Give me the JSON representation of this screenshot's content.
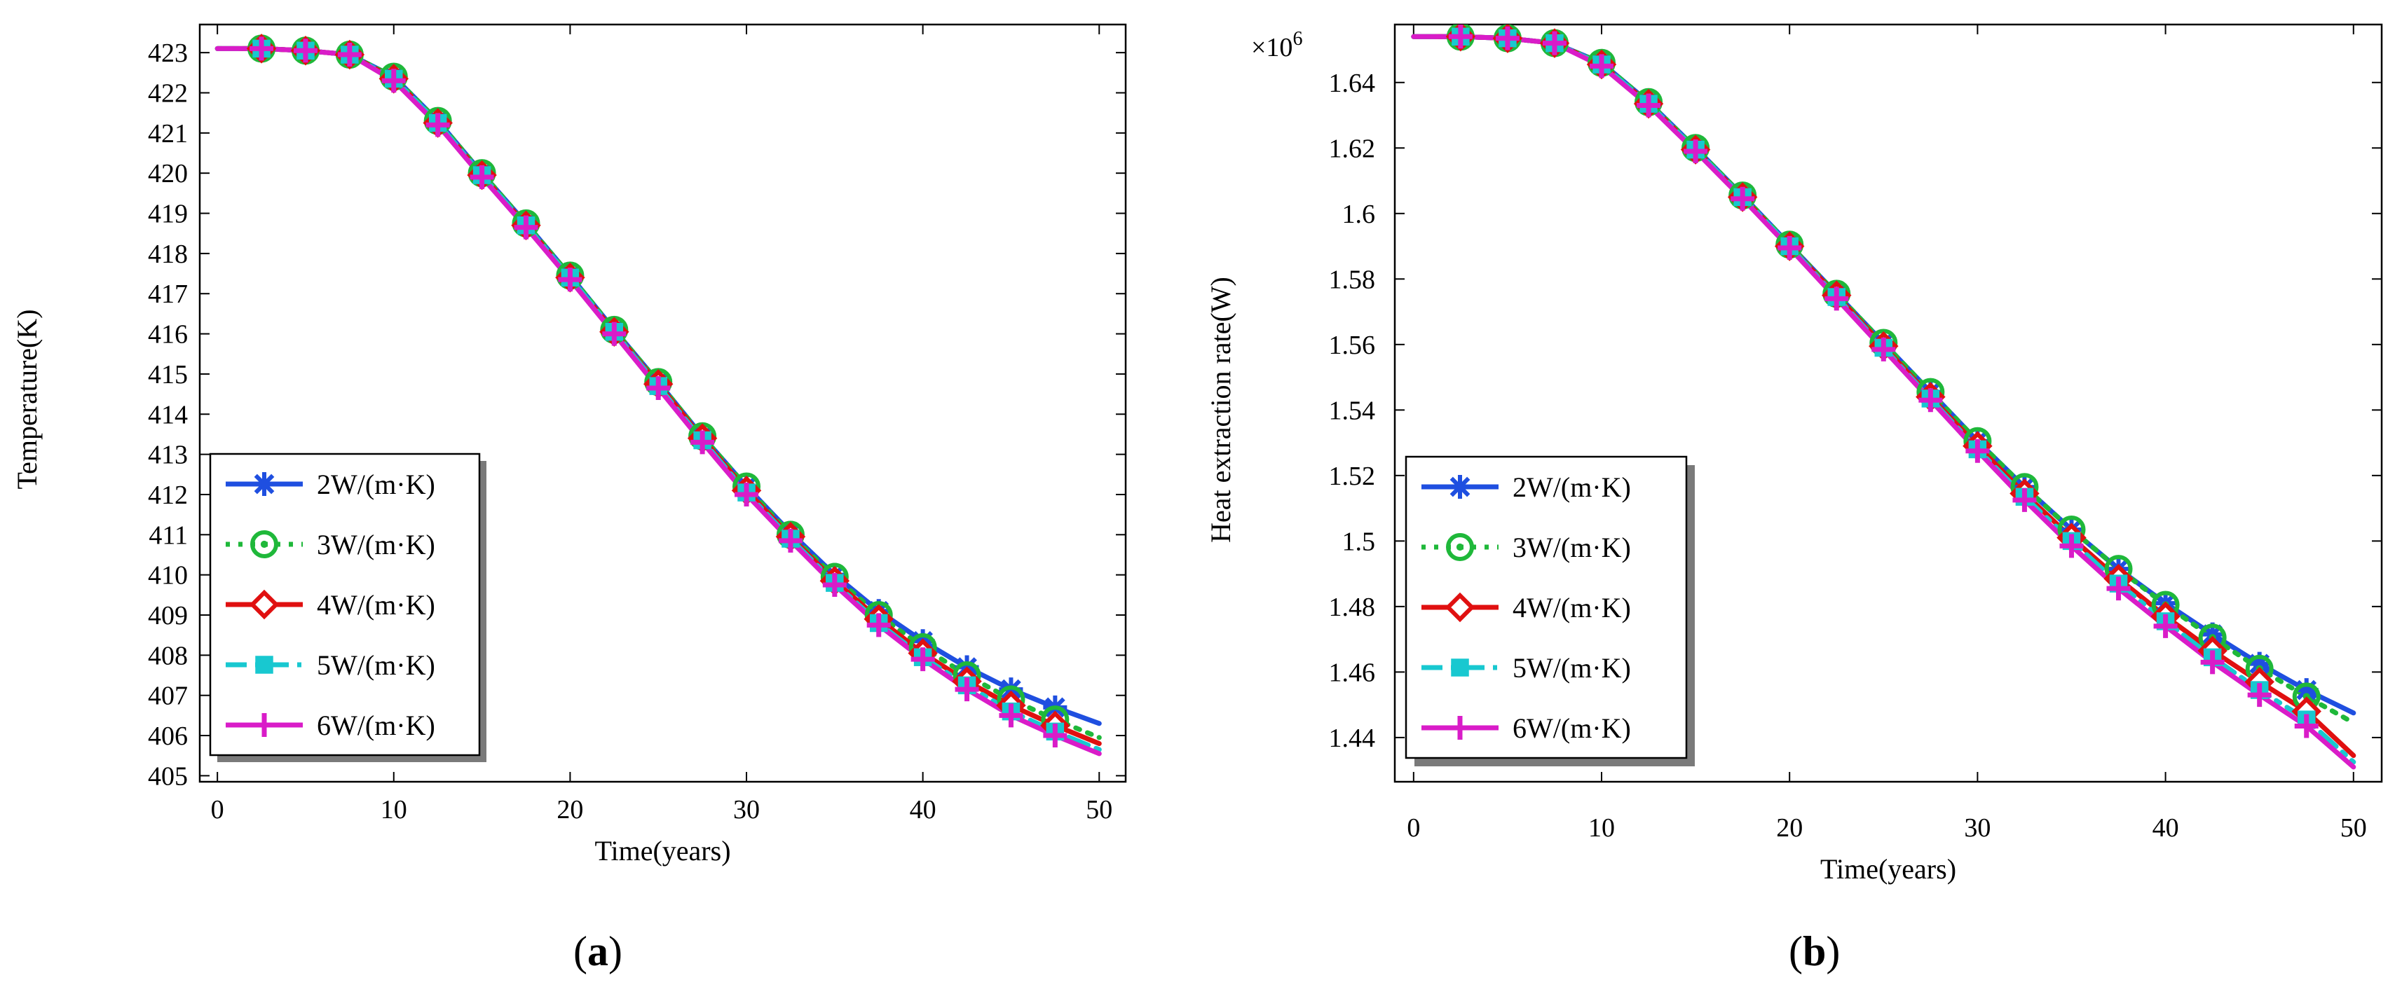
{
  "chart_data": [
    {
      "type": "line",
      "panel_label": {
        "open": "(",
        "letter": "a",
        "close": ")"
      },
      "title": "",
      "xlabel": "Time(years)",
      "ylabel": "Temperature(K)",
      "xlim": [
        -1,
        51.5
      ],
      "ylim": [
        404.85,
        423.7
      ],
      "x_ticks": [
        0,
        10,
        20,
        30,
        40,
        50
      ],
      "y_ticks": [
        405,
        406,
        407,
        408,
        409,
        410,
        411,
        412,
        413,
        414,
        415,
        416,
        417,
        418,
        419,
        420,
        421,
        422,
        423
      ],
      "y_multiplier": "",
      "grid": false,
      "legend_position": "bottom-left",
      "x": [
        0,
        2.5,
        5,
        7.5,
        10,
        12.5,
        15,
        17.5,
        20,
        22.5,
        25,
        27.5,
        30,
        32.5,
        35,
        37.5,
        40,
        42.5,
        45,
        47.5,
        50
      ],
      "series": [
        {
          "name": "2W/(m·K)",
          "color": "#1f4fe0",
          "marker": "asterisk",
          "dash": "solid",
          "values": [
            423.1,
            423.1,
            423.05,
            422.95,
            422.4,
            421.3,
            420.0,
            418.75,
            417.45,
            416.1,
            414.8,
            413.45,
            412.2,
            411.05,
            410.0,
            409.1,
            408.35,
            407.7,
            407.15,
            406.7,
            406.3
          ]
        },
        {
          "name": "3W/(m·K)",
          "color": "#1fb83a",
          "marker": "circle-dot",
          "dash": "dot",
          "values": [
            423.1,
            423.1,
            423.05,
            422.95,
            422.4,
            421.3,
            420.0,
            418.75,
            417.45,
            416.1,
            414.8,
            413.45,
            412.2,
            411.0,
            409.95,
            409.0,
            408.2,
            407.5,
            406.9,
            406.4,
            405.95
          ]
        },
        {
          "name": "4W/(m·K)",
          "color": "#e01010",
          "marker": "diamond",
          "dash": "solid",
          "values": [
            423.1,
            423.1,
            423.05,
            422.95,
            422.35,
            421.25,
            419.95,
            418.7,
            417.4,
            416.05,
            414.75,
            413.4,
            412.1,
            410.95,
            409.85,
            408.9,
            408.05,
            407.35,
            406.75,
            406.25,
            405.8
          ]
        },
        {
          "name": "5W/(m·K)",
          "color": "#18c8d0",
          "marker": "square",
          "dash": "dashdot",
          "values": [
            423.1,
            423.1,
            423.05,
            422.95,
            422.35,
            421.25,
            419.95,
            418.7,
            417.4,
            416.05,
            414.7,
            413.35,
            412.05,
            410.9,
            409.8,
            408.8,
            407.95,
            407.25,
            406.6,
            406.1,
            405.65
          ]
        },
        {
          "name": "6W/(m·K)",
          "color": "#d91cc8",
          "marker": "plus",
          "dash": "solid",
          "values": [
            423.1,
            423.1,
            423.05,
            422.95,
            422.3,
            421.2,
            419.9,
            418.65,
            417.35,
            416.0,
            414.65,
            413.3,
            412.0,
            410.85,
            409.75,
            408.75,
            407.9,
            407.15,
            406.5,
            406.0,
            405.55
          ]
        }
      ]
    },
    {
      "type": "line",
      "panel_label": {
        "open": "(",
        "letter": "b",
        "close": ")"
      },
      "title": "",
      "xlabel": "Time(years)",
      "ylabel": "Heat extraction rate(W)",
      "xlim": [
        -1,
        51.5
      ],
      "ylim": [
        1.4265,
        1.6577
      ],
      "x_ticks": [
        0,
        10,
        20,
        30,
        40,
        50
      ],
      "y_ticks": [
        1.44,
        1.46,
        1.48,
        1.5,
        1.52,
        1.54,
        1.56,
        1.58,
        1.6,
        1.62,
        1.64
      ],
      "y_tick_labels": [
        "1.44",
        "1.46",
        "1.48",
        "1.5",
        "1.52",
        "1.54",
        "1.56",
        "1.58",
        "1.6",
        "1.62",
        "1.64"
      ],
      "y_multiplier": {
        "base": "×10",
        "exponent": "6"
      },
      "grid": false,
      "legend_position": "bottom-left",
      "x": [
        0,
        2.5,
        5,
        7.5,
        10,
        12.5,
        15,
        17.5,
        20,
        22.5,
        25,
        27.5,
        30,
        32.5,
        35,
        37.5,
        40,
        42.5,
        45,
        47.5,
        50
      ],
      "series": [
        {
          "name": "2W/(m·K)",
          "color": "#1f4fe0",
          "marker": "asterisk",
          "dash": "solid",
          "values": [
            1.654,
            1.654,
            1.6535,
            1.652,
            1.646,
            1.634,
            1.62,
            1.6055,
            1.5905,
            1.5755,
            1.5605,
            1.5455,
            1.5305,
            1.5165,
            1.5035,
            1.4915,
            1.481,
            1.4715,
            1.4625,
            1.4545,
            1.4475
          ]
        },
        {
          "name": "3W/(m·K)",
          "color": "#1fb83a",
          "marker": "circle-dot",
          "dash": "dot",
          "values": [
            1.654,
            1.654,
            1.6535,
            1.652,
            1.646,
            1.634,
            1.62,
            1.6055,
            1.5905,
            1.5755,
            1.5605,
            1.5455,
            1.5305,
            1.5165,
            1.5035,
            1.4915,
            1.4805,
            1.4705,
            1.461,
            1.4525,
            1.4445
          ]
        },
        {
          "name": "4W/(m·K)",
          "color": "#e01010",
          "marker": "diamond",
          "dash": "solid",
          "values": [
            1.654,
            1.654,
            1.6535,
            1.652,
            1.6455,
            1.6335,
            1.6195,
            1.605,
            1.59,
            1.575,
            1.5595,
            1.544,
            1.529,
            1.5145,
            1.501,
            1.4885,
            1.477,
            1.4665,
            1.457,
            1.448,
            1.4345
          ]
        },
        {
          "name": "5W/(m·K)",
          "color": "#18c8d0",
          "marker": "square",
          "dash": "dashdot",
          "values": [
            1.654,
            1.654,
            1.6535,
            1.652,
            1.6455,
            1.6335,
            1.6195,
            1.605,
            1.59,
            1.5745,
            1.559,
            1.5435,
            1.528,
            1.5135,
            1.5,
            1.487,
            1.4755,
            1.4645,
            1.4545,
            1.4455,
            1.4325
          ]
        },
        {
          "name": "6W/(m·K)",
          "color": "#d91cc8",
          "marker": "plus",
          "dash": "solid",
          "values": [
            1.654,
            1.654,
            1.6535,
            1.652,
            1.645,
            1.633,
            1.619,
            1.6045,
            1.5895,
            1.574,
            1.5585,
            1.543,
            1.5275,
            1.5125,
            1.4985,
            1.4855,
            1.474,
            1.463,
            1.453,
            1.4435,
            1.431
          ]
        }
      ]
    }
  ]
}
